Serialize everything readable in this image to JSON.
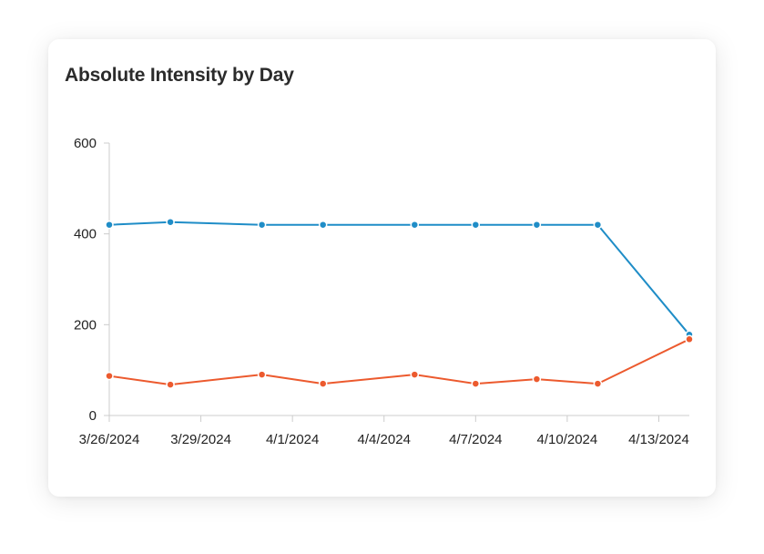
{
  "card": {
    "title": "Absolute Intensity by Day"
  },
  "colors": {
    "series_blue": "#1f8dc7",
    "series_orange": "#ec5a2e",
    "axis": "#cccccc",
    "text": "#222222"
  },
  "chart_data": {
    "type": "line",
    "title": "Absolute Intensity by Day",
    "xlabel": "",
    "ylabel": "",
    "ylim": [
      0,
      600
    ],
    "yticks": [
      0,
      200,
      400,
      600
    ],
    "xlim": [
      "2024-03-26",
      "2024-04-14"
    ],
    "xticks": [
      {
        "date": "2024-03-26",
        "label": "3/26/2024"
      },
      {
        "date": "2024-03-29",
        "label": "3/29/2024"
      },
      {
        "date": "2024-04-01",
        "label": "4/1/2024"
      },
      {
        "date": "2024-04-04",
        "label": "4/4/2024"
      },
      {
        "date": "2024-04-07",
        "label": "4/7/2024"
      },
      {
        "date": "2024-04-10",
        "label": "4/10/2024"
      },
      {
        "date": "2024-04-13",
        "label": "4/13/2024"
      }
    ],
    "grid": false,
    "legend": "none",
    "series": [
      {
        "color": "#1f8dc7",
        "points": [
          {
            "x": "2024-03-26",
            "y": 420
          },
          {
            "x": "2024-03-28",
            "y": 426
          },
          {
            "x": "2024-03-31",
            "y": 420
          },
          {
            "x": "2024-04-02",
            "y": 420
          },
          {
            "x": "2024-04-05",
            "y": 420
          },
          {
            "x": "2024-04-07",
            "y": 420
          },
          {
            "x": "2024-04-09",
            "y": 420
          },
          {
            "x": "2024-04-11",
            "y": 420
          },
          {
            "x": "2024-04-14",
            "y": 178
          }
        ]
      },
      {
        "color": "#ec5a2e",
        "points": [
          {
            "x": "2024-03-26",
            "y": 87
          },
          {
            "x": "2024-03-28",
            "y": 68
          },
          {
            "x": "2024-03-31",
            "y": 90
          },
          {
            "x": "2024-04-02",
            "y": 70
          },
          {
            "x": "2024-04-05",
            "y": 90
          },
          {
            "x": "2024-04-07",
            "y": 70
          },
          {
            "x": "2024-04-09",
            "y": 80
          },
          {
            "x": "2024-04-11",
            "y": 70
          },
          {
            "x": "2024-04-14",
            "y": 168
          }
        ]
      }
    ]
  }
}
